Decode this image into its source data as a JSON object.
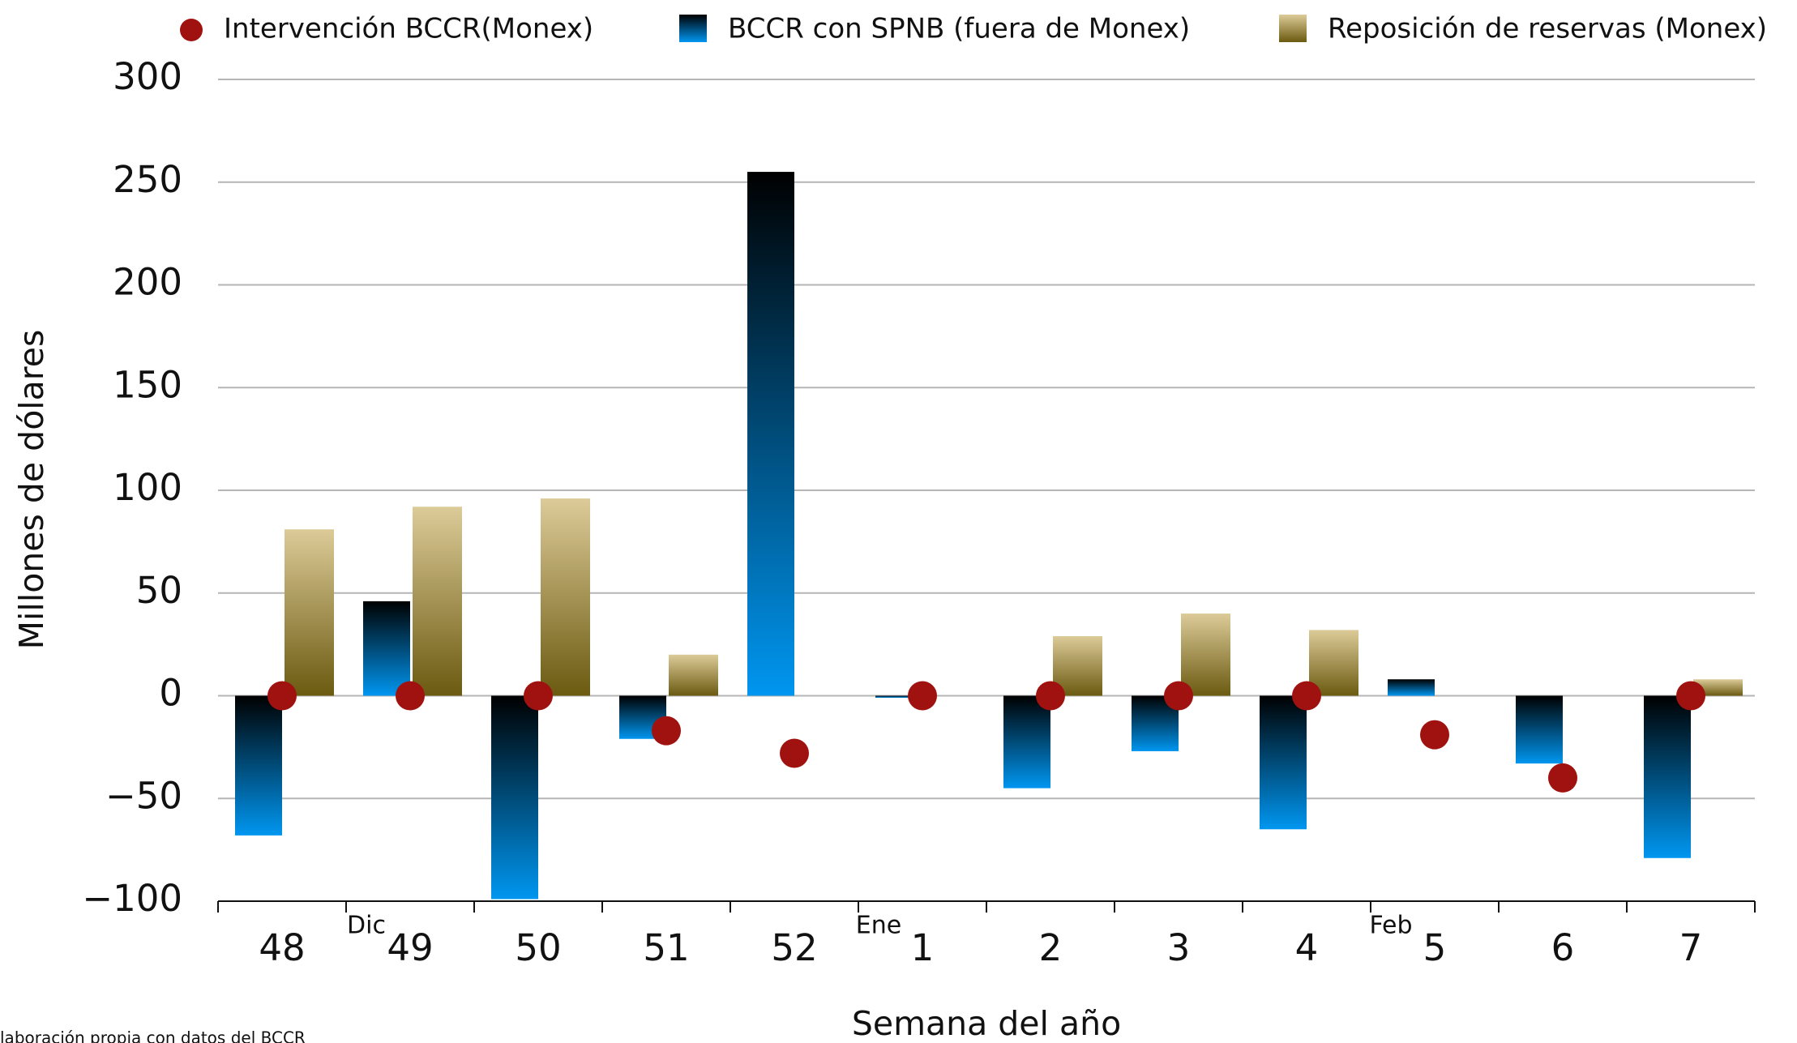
{
  "chart_data": {
    "type": "bar",
    "x_label": "Semana del año",
    "y_label": "Millones de dólares",
    "source": "laboración propia con datos del BCCR",
    "categories": [
      "48",
      "49",
      "50",
      "51",
      "52",
      "1",
      "2",
      "3",
      "4",
      "5",
      "6",
      "7"
    ],
    "annotations": [
      {
        "text": "Dic",
        "at": "49"
      },
      {
        "text": "Ene",
        "at": "1"
      },
      {
        "text": "Feb",
        "at": "5"
      }
    ],
    "series": [
      {
        "name": "Intervención BCCR(Monex)",
        "mark": "dot",
        "color": "#a01210",
        "values": [
          0,
          0,
          0,
          -17,
          -28,
          0,
          0,
          0,
          0,
          -19,
          -40,
          0
        ]
      },
      {
        "name": "BCCR con SPNB (fuera de Monex)",
        "mark": "bar",
        "color": "#0096f0",
        "gradient": [
          "#000000",
          "#0096f0"
        ],
        "values": [
          -68,
          46,
          -99,
          -21,
          255,
          -1,
          -45,
          -27,
          -65,
          8,
          -33,
          -79
        ]
      },
      {
        "name": "Reposición de reservas (Monex)",
        "mark": "bar",
        "color": "#8a7630",
        "gradient": [
          "#dccb98",
          "#6b5a10"
        ],
        "values": [
          81,
          92,
          96,
          20,
          null,
          null,
          29,
          40,
          32,
          null,
          null,
          8
        ]
      }
    ],
    "ylim": [
      -100,
      300
    ],
    "yticks": [
      {
        "value": -100,
        "label": "−100"
      },
      {
        "value": -50,
        "label": "−50"
      },
      0,
      50,
      100,
      150,
      200,
      250,
      300
    ],
    "grid": true
  }
}
